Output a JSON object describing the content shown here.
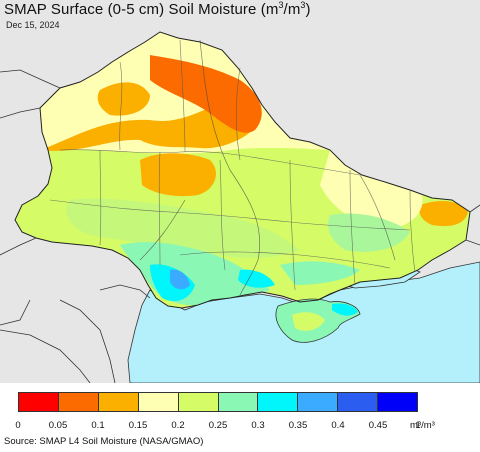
{
  "header": {
    "title_main": "SMAP Surface (0-5 cm) Soil Moisture (m",
    "title_sup1": "3",
    "title_mid": "/m",
    "title_sup2": "3",
    "title_end": ")",
    "date": "Dec 15, 2024"
  },
  "colors": {
    "land_background": "#e6e6e6",
    "sea": "#b3f0fb",
    "border": "#333333"
  },
  "legend": {
    "ticks": [
      "0",
      "0.05",
      "0.1",
      "0.15",
      "0.2",
      "0.25",
      "0.3",
      "0.35",
      "0.4",
      "0.45",
      "1"
    ],
    "unit": "m³/m³",
    "colors": [
      "#ff0000",
      "#fb6b00",
      "#fbb000",
      "#ffffb3",
      "#d5fc67",
      "#8bf7b5",
      "#00f6fa",
      "#3aabff",
      "#2b5ef0",
      "#0000f8"
    ]
  },
  "footer": {
    "source": "Source: SMAP L4 Soil Moisture (NASA/GMAO)"
  }
}
